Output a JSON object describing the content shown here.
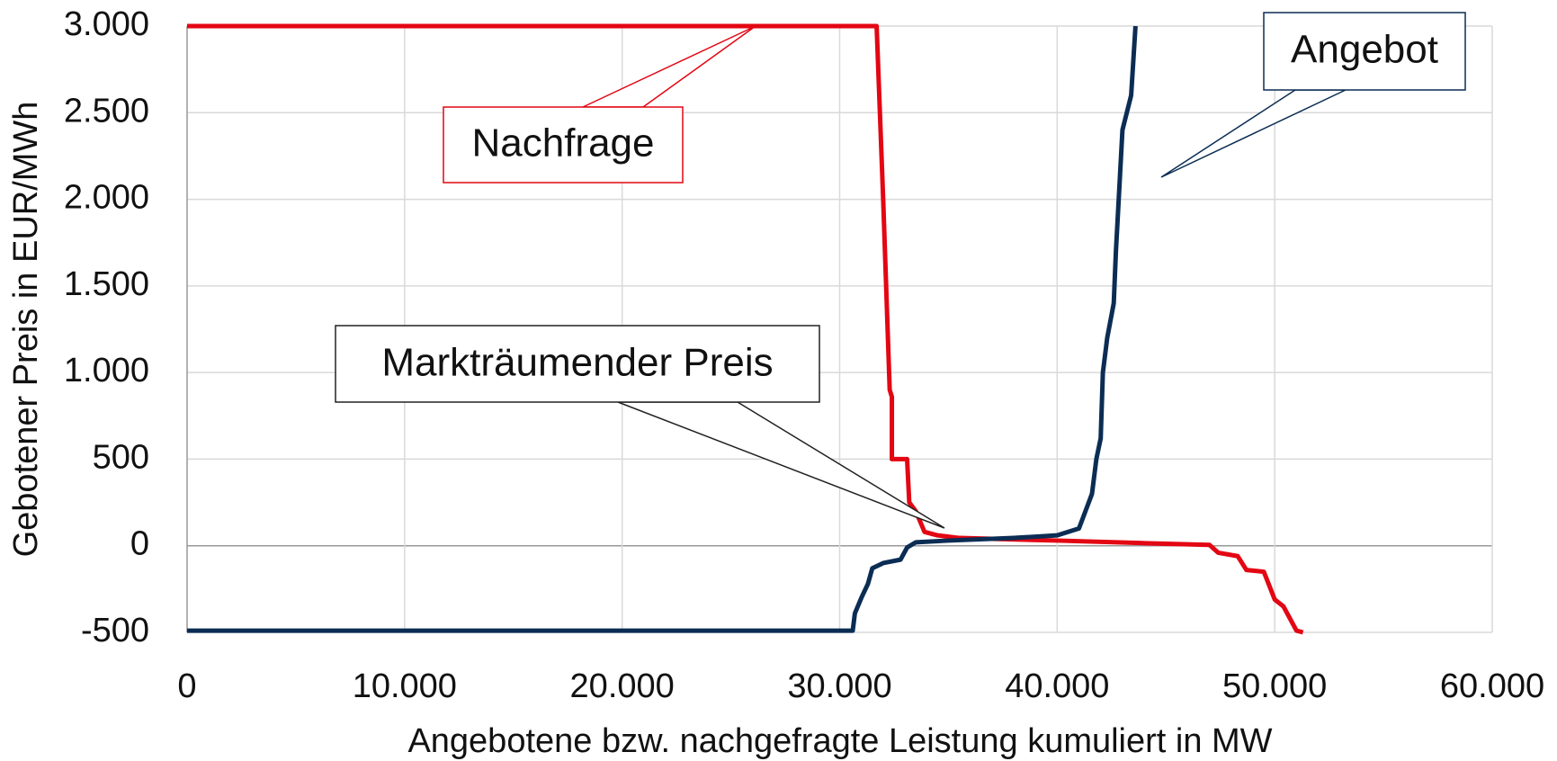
{
  "chart_data": {
    "type": "line",
    "xlabel": "Angebotene bzw. nachgefragte Leistung kumuliert in MW",
    "ylabel": "Gebotener Preis in EUR/MWh",
    "xlim": [
      0,
      60000
    ],
    "ylim": [
      -500,
      3000
    ],
    "xticks": [
      0,
      {
        "value": 10000,
        "label": "10.000"
      },
      {
        "value": 20000,
        "label": "20.000"
      },
      {
        "value": 30000,
        "label": "30.000"
      },
      {
        "value": 40000,
        "label": "40.000"
      },
      {
        "value": 50000,
        "label": "50.000"
      },
      {
        "value": 60000,
        "label": "60.000"
      }
    ],
    "yticks": [
      -500,
      0,
      500,
      {
        "value": 1000,
        "label": "1.000"
      },
      {
        "value": 1500,
        "label": "1.500"
      },
      {
        "value": 2000,
        "label": "2.000"
      },
      {
        "value": 2500,
        "label": "2.500"
      },
      {
        "value": 3000,
        "label": "3.000"
      }
    ],
    "grid": true,
    "series": [
      {
        "name": "Nachfrage",
        "color": "#e30613",
        "x": [
          0,
          31700,
          32000,
          32300,
          32400,
          32400,
          33100,
          33200,
          33500,
          33900,
          34500,
          35500,
          37000,
          40000,
          44000,
          47000,
          47400,
          48300,
          48700,
          49500,
          50000,
          50400,
          51000,
          51300
        ],
        "values": [
          3000,
          3000,
          2000,
          900,
          860,
          500,
          500,
          250,
          200,
          80,
          60,
          45,
          40,
          30,
          15,
          5,
          -40,
          -60,
          -140,
          -150,
          -310,
          -350,
          -490,
          -500
        ]
      },
      {
        "name": "Angebot",
        "color": "#0b2d54",
        "x": [
          0,
          30600,
          30700,
          31000,
          31300,
          31500,
          32000,
          32800,
          33100,
          33500,
          35000,
          38000,
          40000,
          41000,
          41300,
          41600,
          41800,
          42000,
          42100,
          42300,
          42600,
          42700,
          43000,
          43400,
          43600
        ],
        "values": [
          -490,
          -490,
          -390,
          -300,
          -220,
          -130,
          -100,
          -80,
          -10,
          20,
          30,
          45,
          60,
          100,
          200,
          300,
          500,
          620,
          1000,
          1200,
          1400,
          1700,
          2400,
          2600,
          3000
        ]
      }
    ],
    "annotations": [
      "Markträumender Preis"
    ]
  }
}
